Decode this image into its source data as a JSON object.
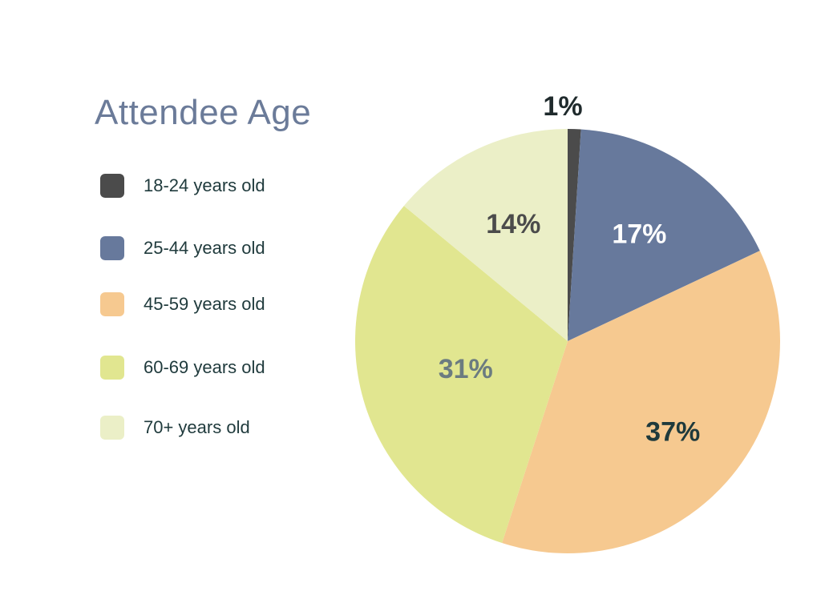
{
  "chart_data": {
    "type": "pie",
    "title": "Attendee Age",
    "categories": [
      "18-24 years old",
      "25-44 years old",
      "45-59 years old",
      "60-69 years old",
      "70+ years old"
    ],
    "values": [
      1,
      17,
      37,
      31,
      14
    ],
    "data_labels": [
      "1%",
      "17%",
      "37%",
      "31%",
      "14%"
    ],
    "colors": [
      "#4b4b4b",
      "#67799c",
      "#f6c990",
      "#e1e690",
      "#ebefc7"
    ],
    "label_colors": [
      "#1f2a2c",
      "#ffffff",
      "#1f3a3c",
      "#6b7b80",
      "#4b4b4b"
    ],
    "legend_position": "left"
  }
}
